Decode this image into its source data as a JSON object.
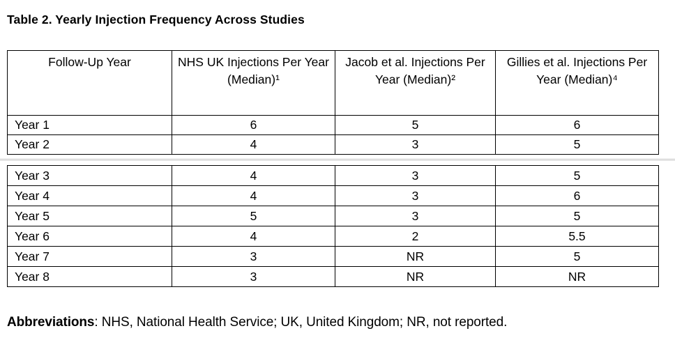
{
  "title": "Table 2. Yearly Injection Frequency Across Studies",
  "table": {
    "columns": [
      "Follow-Up Year",
      "NHS UK Injections Per Year (Median)¹",
      "Jacob et al. Injections Per Year (Median)²",
      "Gillies et al. Injections Per Year (Median)⁴"
    ],
    "segment1_rows": [
      [
        "Year 1",
        "6",
        "5",
        "6"
      ],
      [
        "Year 2",
        "4",
        "3",
        "5"
      ]
    ],
    "segment2_rows": [
      [
        "Year 3",
        "4",
        "3",
        "5"
      ],
      [
        "Year 4",
        "4",
        "3",
        "6"
      ],
      [
        "Year 5",
        "5",
        "3",
        "5"
      ],
      [
        "Year 6",
        "4",
        "2",
        "5.5"
      ],
      [
        "Year 7",
        "3",
        "NR",
        "5"
      ],
      [
        "Year 8",
        "3",
        "NR",
        "NR"
      ]
    ]
  },
  "footnote": {
    "label": "Abbreviations",
    "text": ": NHS, National Health Service; UK, United Kingdom; NR, not reported."
  },
  "colors": {
    "text": "#000000",
    "background": "#ffffff",
    "table_border": "#000000",
    "page_divider": "#d7d7d7"
  }
}
